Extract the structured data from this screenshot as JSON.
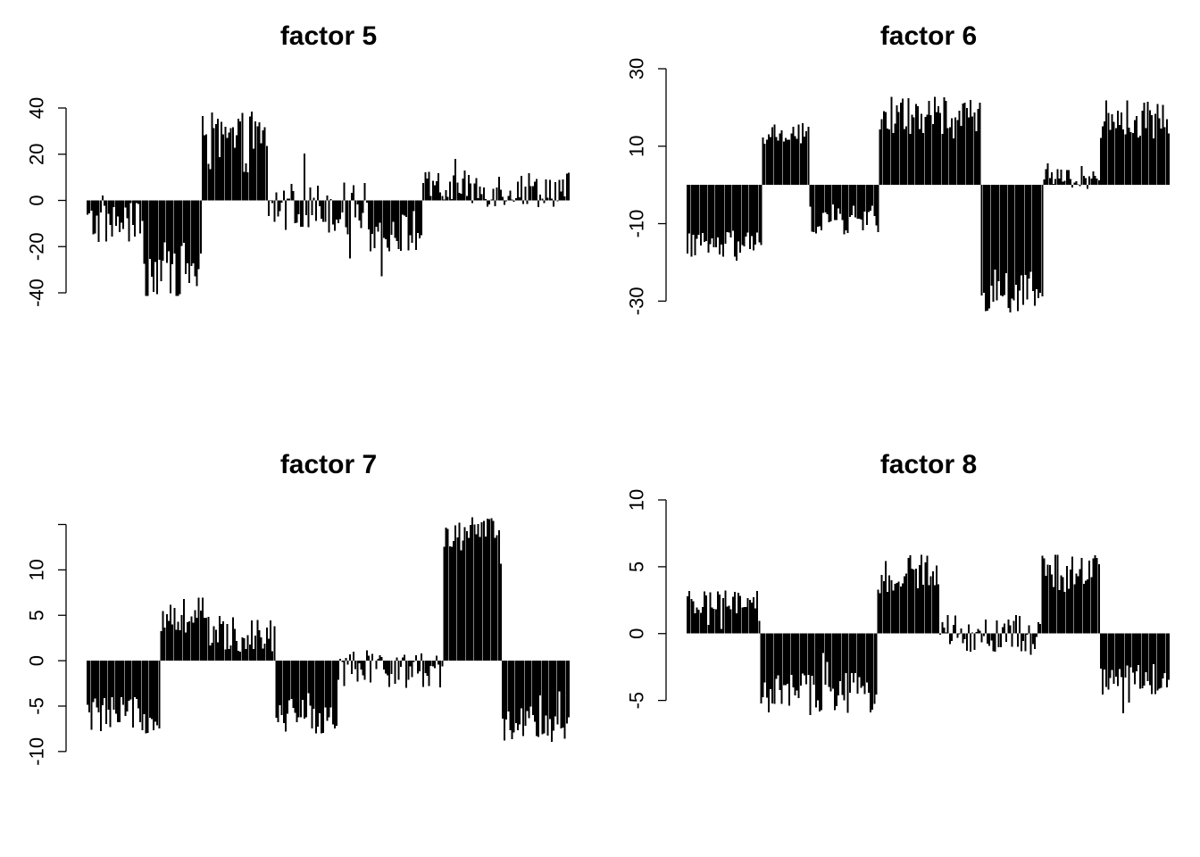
{
  "figure": {
    "bar_color": "#000000",
    "background": "#ffffff"
  },
  "chart_data": [
    {
      "type": "bar",
      "title": "factor 5",
      "xlabel": "",
      "ylabel": "",
      "y_ticks": [
        -40,
        -20,
        0,
        20,
        40
      ],
      "y_tick_labels": [
        "-40",
        "-20",
        "0",
        "20",
        "40"
      ],
      "ylim": [
        -57,
        57
      ],
      "grid": false,
      "n_bars": 256,
      "segments": [
        {
          "start": 0,
          "end": 30,
          "mean": -10,
          "spread": 9
        },
        {
          "start": 30,
          "end": 61,
          "mean": -30,
          "spread": 12
        },
        {
          "start": 61,
          "end": 96,
          "mean": 25,
          "spread": 13
        },
        {
          "start": 96,
          "end": 150,
          "mean": -3,
          "spread": 11
        },
        {
          "start": 150,
          "end": 178,
          "mean": -14,
          "spread": 9
        },
        {
          "start": 178,
          "end": 256,
          "mean": 5,
          "spread": 8
        }
      ]
    },
    {
      "type": "bar",
      "title": "factor 6",
      "xlabel": "",
      "ylabel": "",
      "y_ticks": [
        -30,
        -10,
        10,
        30
      ],
      "y_tick_labels": [
        "-30",
        "-10",
        "10",
        "30"
      ],
      "ylim": [
        -38,
        30
      ],
      "grid": false,
      "n_bars": 256,
      "segments": [
        {
          "start": 0,
          "end": 40,
          "mean": -16,
          "spread": 4
        },
        {
          "start": 40,
          "end": 65,
          "mean": 13,
          "spread": 3
        },
        {
          "start": 65,
          "end": 102,
          "mean": -9,
          "spread": 4
        },
        {
          "start": 102,
          "end": 156,
          "mean": 18,
          "spread": 5
        },
        {
          "start": 156,
          "end": 189,
          "mean": -28,
          "spread": 5
        },
        {
          "start": 189,
          "end": 219,
          "mean": 2,
          "spread": 3
        },
        {
          "start": 219,
          "end": 256,
          "mean": 17,
          "spread": 5
        }
      ]
    },
    {
      "type": "bar",
      "title": "factor 7",
      "xlabel": "",
      "ylabel": "",
      "y_ticks": [
        -10,
        -5,
        0,
        5,
        10,
        15
      ],
      "y_tick_labels": [
        "-10",
        "-5",
        "0",
        "5",
        "10",
        ""
      ],
      "ylim": [
        -11,
        18
      ],
      "grid": false,
      "n_bars": 256,
      "segments": [
        {
          "start": 0,
          "end": 39,
          "mean": -6,
          "spread": 2
        },
        {
          "start": 39,
          "end": 65,
          "mean": 5,
          "spread": 2
        },
        {
          "start": 65,
          "end": 100,
          "mean": 3,
          "spread": 2
        },
        {
          "start": 100,
          "end": 133,
          "mean": -6,
          "spread": 2
        },
        {
          "start": 133,
          "end": 189,
          "mean": -1,
          "spread": 2
        },
        {
          "start": 189,
          "end": 220,
          "mean": 14,
          "spread": 2
        },
        {
          "start": 220,
          "end": 256,
          "mean": -7,
          "spread": 2
        }
      ]
    },
    {
      "type": "bar",
      "title": "factor 8",
      "xlabel": "",
      "ylabel": "",
      "y_ticks": [
        -5,
        0,
        5,
        10
      ],
      "y_tick_labels": [
        "-5",
        "0",
        "5",
        "10"
      ],
      "ylim": [
        -9.5,
        10.2
      ],
      "grid": false,
      "n_bars": 256,
      "segments": [
        {
          "start": 0,
          "end": 39,
          "mean": 2,
          "spread": 1.2
        },
        {
          "start": 39,
          "end": 101,
          "mean": -4.5,
          "spread": 1.6
        },
        {
          "start": 101,
          "end": 134,
          "mean": 4.5,
          "spread": 1.6
        },
        {
          "start": 134,
          "end": 188,
          "mean": 0,
          "spread": 1.4
        },
        {
          "start": 188,
          "end": 219,
          "mean": 4.5,
          "spread": 1.6
        },
        {
          "start": 219,
          "end": 256,
          "mean": -3.5,
          "spread": 1.3
        }
      ]
    }
  ]
}
